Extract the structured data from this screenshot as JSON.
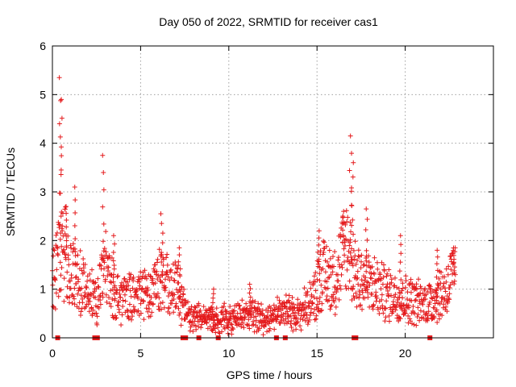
{
  "chart_data": {
    "type": "scatter",
    "title": "Day 050 of 2022, SRMTID for receiver cas1",
    "xlabel": "GPS time / hours",
    "ylabel": "SRMTID / TECUs",
    "xlim": [
      0,
      25
    ],
    "ylim": [
      0,
      6
    ],
    "x_ticks": [
      0,
      5,
      10,
      15,
      20
    ],
    "y_ticks": [
      0,
      1,
      2,
      3,
      4,
      5,
      6
    ],
    "grid": true,
    "marker": "+",
    "color": "#e41a1c",
    "series": [
      {
        "name": "SRMTID",
        "profile": [
          [
            0.0,
            1.1
          ],
          [
            0.3,
            1.5
          ],
          [
            0.5,
            2.2
          ],
          [
            0.7,
            1.8
          ],
          [
            1.0,
            1.3
          ],
          [
            1.5,
            1.2
          ],
          [
            2.0,
            1.0
          ],
          [
            2.5,
            0.8
          ],
          [
            3.0,
            1.4
          ],
          [
            3.5,
            0.9
          ],
          [
            4.0,
            0.8
          ],
          [
            5.0,
            0.9
          ],
          [
            6.0,
            1.2
          ],
          [
            7.0,
            1.0
          ],
          [
            7.5,
            0.6
          ],
          [
            8.0,
            0.4
          ],
          [
            9.0,
            0.35
          ],
          [
            10.0,
            0.4
          ],
          [
            11.0,
            0.5
          ],
          [
            12.0,
            0.4
          ],
          [
            13.0,
            0.55
          ],
          [
            14.0,
            0.5
          ],
          [
            14.8,
            0.8
          ],
          [
            15.2,
            1.3
          ],
          [
            16.0,
            1.2
          ],
          [
            16.7,
            1.9
          ],
          [
            17.2,
            1.3
          ],
          [
            18.0,
            1.1
          ],
          [
            19.0,
            0.9
          ],
          [
            20.0,
            0.8
          ],
          [
            21.0,
            0.7
          ],
          [
            21.7,
            0.8
          ],
          [
            22.3,
            1.0
          ],
          [
            22.8,
            1.3
          ]
        ],
        "spikes": [
          {
            "x": 0.45,
            "peak": 5.35
          },
          {
            "x": 0.5,
            "peak": 4.9
          },
          {
            "x": 0.75,
            "peak": 2.7
          },
          {
            "x": 1.3,
            "peak": 3.1
          },
          {
            "x": 2.9,
            "peak": 3.75
          },
          {
            "x": 3.5,
            "peak": 2.1
          },
          {
            "x": 6.2,
            "peak": 2.55
          },
          {
            "x": 7.2,
            "peak": 1.85
          },
          {
            "x": 9.1,
            "peak": 1.0
          },
          {
            "x": 11.2,
            "peak": 1.1
          },
          {
            "x": 15.1,
            "peak": 2.2
          },
          {
            "x": 16.5,
            "peak": 2.6
          },
          {
            "x": 16.9,
            "peak": 4.15
          },
          {
            "x": 17.0,
            "peak": 3.6
          },
          {
            "x": 17.8,
            "peak": 2.65
          },
          {
            "x": 19.7,
            "peak": 2.1
          },
          {
            "x": 21.8,
            "peak": 1.8
          },
          {
            "x": 22.8,
            "peak": 1.85
          }
        ],
        "zero_markers": [
          0.3,
          2.4,
          2.55,
          7.4,
          7.55,
          8.3,
          9.4,
          12.7,
          13.2,
          17.1,
          17.2,
          21.4
        ]
      }
    ]
  }
}
